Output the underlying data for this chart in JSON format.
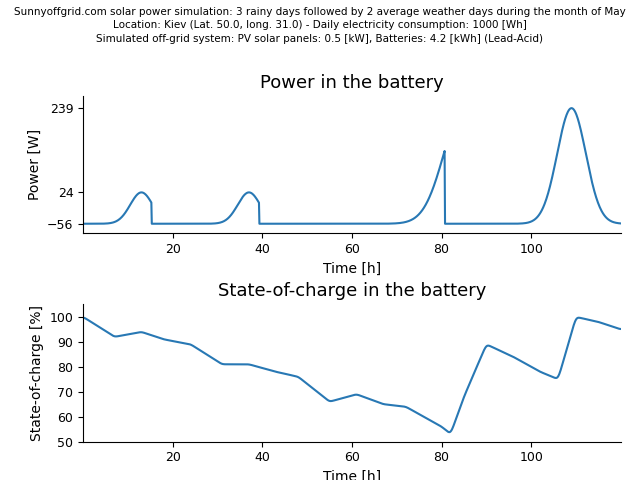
{
  "title_suptitle_line1": "Sunnyoffgrid.com solar power simulation: 3 rainy days followed by 2 average weather days during the month of May",
  "title_suptitle_line2": "Location: Kiev (Lat. 50.0, long. 31.0) - Daily electricity consumption: 1000 [Wh]",
  "title_suptitle_line3": "Simulated off-grid system: PV solar panels: 0.5 [kW], Batteries: 4.2 [kWh] (Lead-Acid)",
  "plot1_title": "Power in the battery",
  "plot1_ylabel": "Power [W]",
  "plot1_xlabel": "Time [h]",
  "plot1_yticks": [
    -56,
    24,
    239
  ],
  "plot1_ylim": [
    -80,
    270
  ],
  "plot2_title": "State-of-charge in the battery",
  "plot2_ylabel": "State-of-charge [%]",
  "plot2_xlabel": "Time [h]",
  "plot2_ylim": [
    50,
    105
  ],
  "plot2_yticks": [
    50,
    60,
    70,
    80,
    90,
    100
  ],
  "xlim": [
    0,
    120
  ],
  "xticks": [
    20,
    40,
    60,
    80,
    100
  ],
  "line_color": "#2878b4",
  "line_width": 1.5,
  "suptitle_fontsize": 7.5,
  "title_fontsize": 13,
  "label_fontsize": 10
}
